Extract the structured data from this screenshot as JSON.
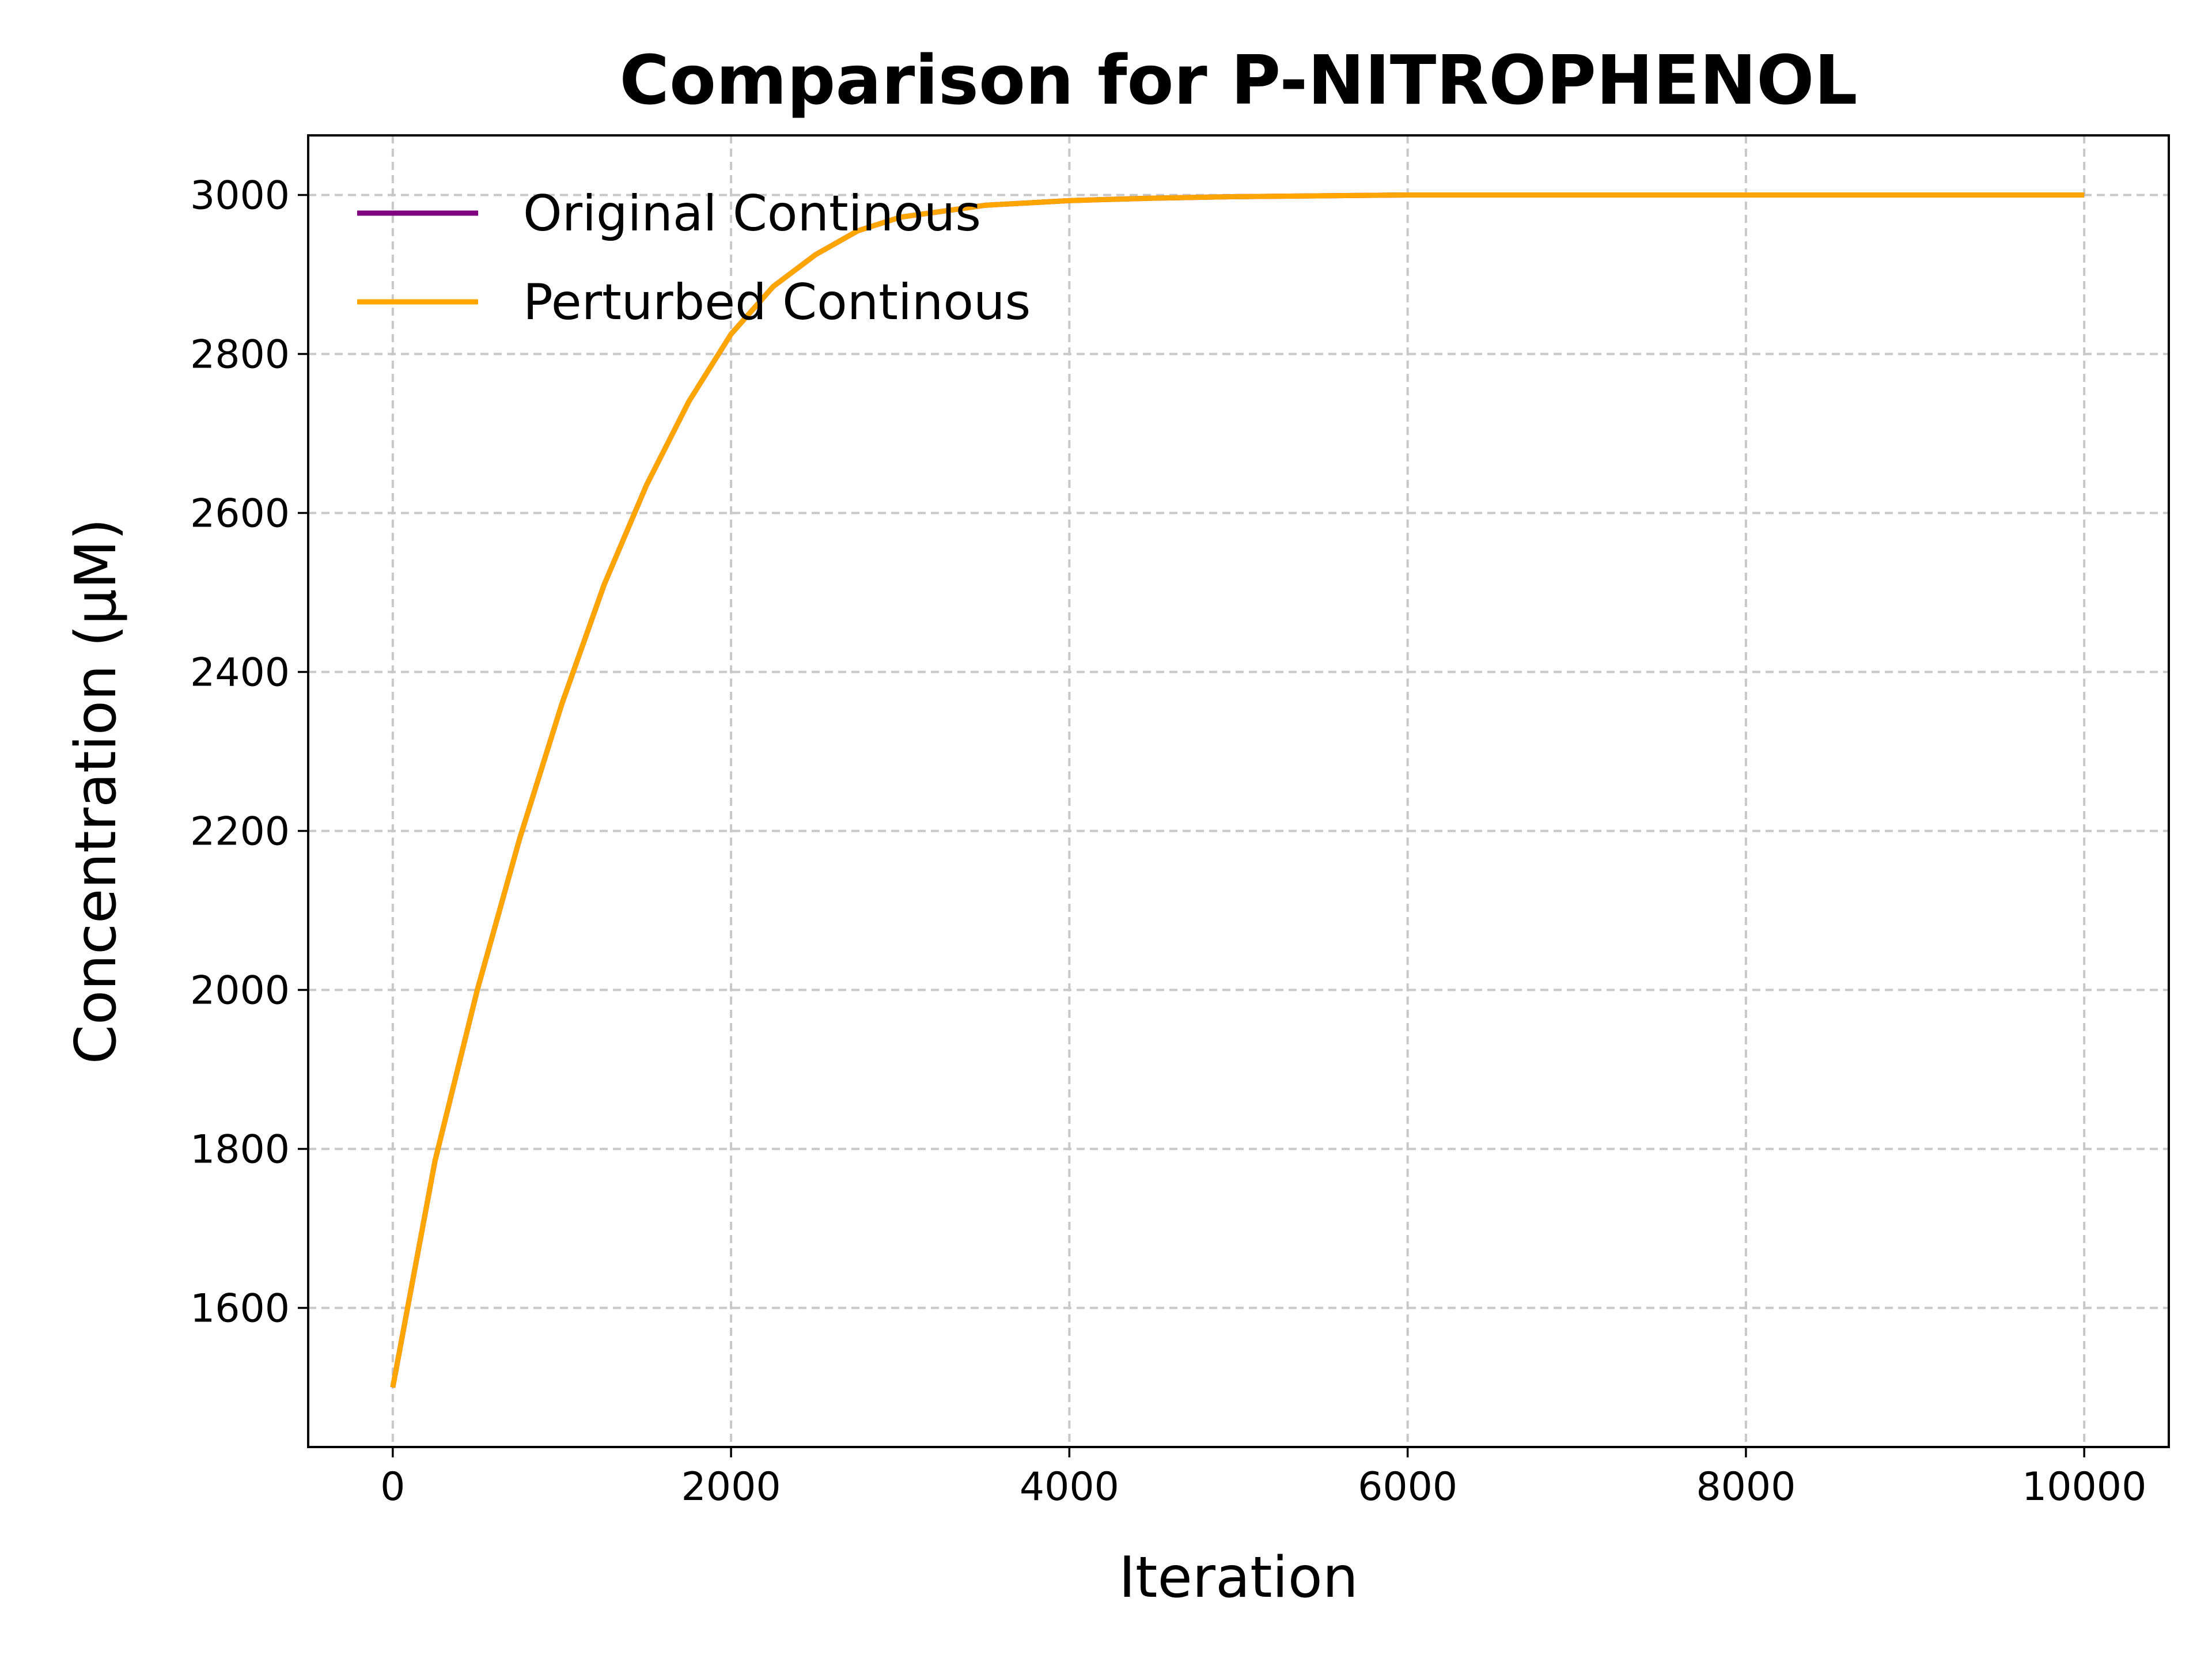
{
  "chart_data": {
    "type": "line",
    "title": "Comparison for P-NITROPHENOL",
    "xlabel": "Iteration",
    "ylabel": "Concentration (μM)",
    "xlim": [
      -500,
      10500
    ],
    "ylim": [
      1425,
      3075
    ],
    "x_ticks": [
      0,
      2000,
      4000,
      6000,
      8000,
      10000
    ],
    "y_ticks": [
      1600,
      1800,
      2000,
      2200,
      2400,
      2600,
      2800,
      3000
    ],
    "grid": true,
    "legend_position": "top-left",
    "x": [
      0,
      250,
      500,
      750,
      1000,
      1250,
      1500,
      1750,
      2000,
      2250,
      2500,
      2750,
      3000,
      3500,
      4000,
      4500,
      5000,
      5500,
      6000,
      7000,
      8000,
      9000,
      10000
    ],
    "series": [
      {
        "name": "Original Continous",
        "color": "#800080",
        "values": [
          1500,
          1785,
          2000,
          2190,
          2360,
          2510,
          2635,
          2740,
          2825,
          2885,
          2925,
          2955,
          2972,
          2987,
          2993,
          2996,
          2998,
          2999,
          3000,
          3000,
          3000,
          3000,
          3000
        ]
      },
      {
        "name": "Perturbed Continous",
        "color": "#ffa500",
        "values": [
          1500,
          1785,
          2000,
          2190,
          2360,
          2510,
          2635,
          2740,
          2825,
          2885,
          2925,
          2955,
          2972,
          2987,
          2993,
          2996,
          2998,
          2999,
          3000,
          3000,
          3000,
          3000,
          3000
        ]
      }
    ]
  }
}
